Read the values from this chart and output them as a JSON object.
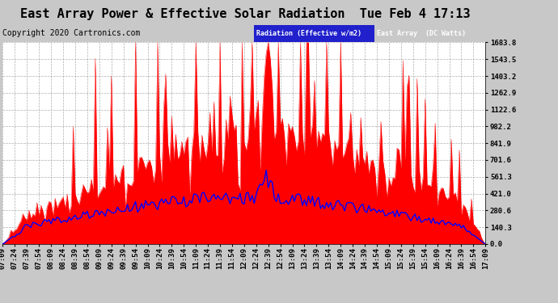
{
  "title": "East Array Power & Effective Solar Radiation  Tue Feb 4 17:13",
  "copyright": "Copyright 2020 Cartronics.com",
  "legend_label_rad": "Radiation (Effective w/m2)",
  "legend_label_east": "East Array  (DC Watts)",
  "bg_color": "#c8c8c8",
  "plot_bg": "#ffffff",
  "grid_color": "#999999",
  "yticks": [
    0.0,
    140.3,
    280.6,
    421.0,
    561.3,
    701.6,
    841.9,
    982.2,
    1122.6,
    1262.9,
    1403.2,
    1543.5,
    1683.8
  ],
  "ymax": 1683.8,
  "xtick_labels": [
    "07:09",
    "07:24",
    "07:39",
    "07:54",
    "08:09",
    "08:24",
    "08:39",
    "08:54",
    "09:09",
    "09:24",
    "09:39",
    "09:54",
    "10:09",
    "10:24",
    "10:39",
    "10:54",
    "11:09",
    "11:24",
    "11:39",
    "11:54",
    "12:09",
    "12:24",
    "12:39",
    "12:54",
    "13:09",
    "13:24",
    "13:39",
    "13:54",
    "14:09",
    "14:24",
    "14:39",
    "14:54",
    "15:09",
    "15:24",
    "15:39",
    "15:54",
    "16:09",
    "16:24",
    "16:39",
    "16:54",
    "17:09"
  ],
  "title_fontsize": 11,
  "copyright_fontsize": 7,
  "tick_fontsize": 6.5,
  "red_color": "#ff0000",
  "blue_color": "#0000ff"
}
